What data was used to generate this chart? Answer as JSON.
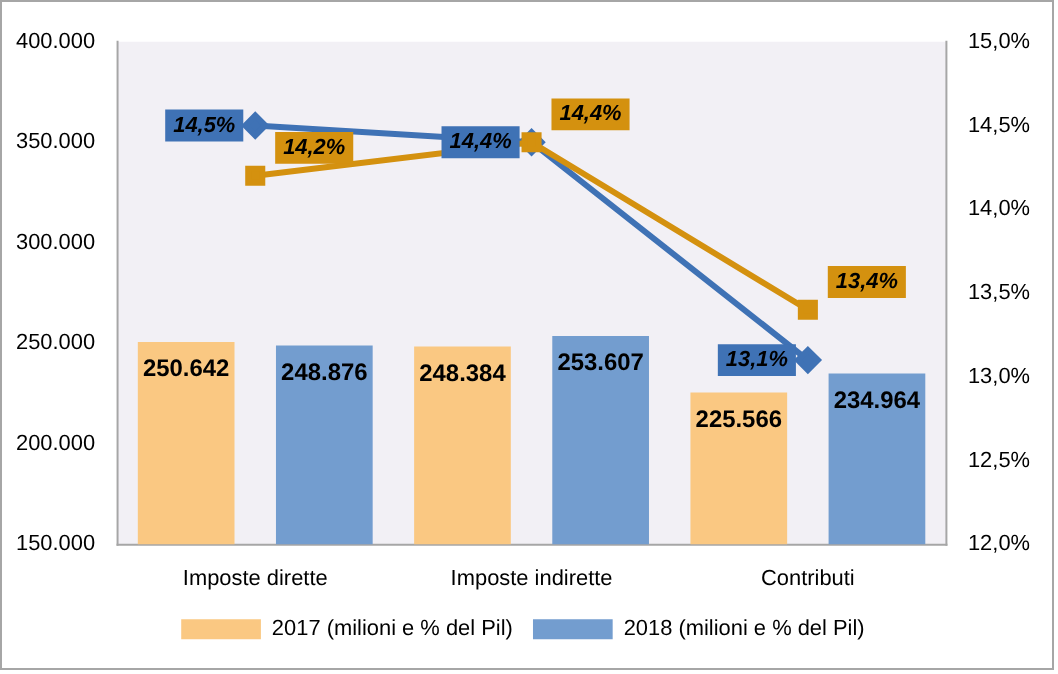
{
  "chart_data": {
    "type": "bar",
    "categories": [
      "Imposte dirette",
      "Imposte indirette",
      "Contributi"
    ],
    "series": [
      {
        "name": "2017 (milioni e % del Pil)",
        "color": "#fac882",
        "values": [
          250642,
          248384,
          225566
        ],
        "value_labels": [
          "250.642",
          "248.384",
          "225.566"
        ]
      },
      {
        "name": "2018 (milioni e % del Pil)",
        "color": "#739dcf",
        "values": [
          248876,
          253607,
          234964
        ],
        "value_labels": [
          "248.876",
          "253.607",
          "234.964"
        ]
      },
      {
        "type": "line",
        "axis": "y2",
        "color": "#d4910f",
        "marker": "square",
        "values": [
          14.2,
          14.4,
          13.4
        ],
        "value_labels": [
          "14,2%",
          "14,4%",
          "13,4%"
        ]
      },
      {
        "type": "line",
        "axis": "y2",
        "color": "#3f72b5",
        "marker": "diamond",
        "values": [
          14.5,
          14.4,
          13.1
        ],
        "value_labels": [
          "14,5%",
          "14,4%",
          "13,1%"
        ]
      }
    ],
    "ylim": [
      150000,
      400000
    ],
    "yticks": [
      {
        "value": 150000,
        "label": "150.000"
      },
      {
        "value": 200000,
        "label": "200.000"
      },
      {
        "value": 250000,
        "label": "250.000"
      },
      {
        "value": 300000,
        "label": "300.000"
      },
      {
        "value": 350000,
        "label": "350.000"
      },
      {
        "value": 400000,
        "label": "400.000"
      }
    ],
    "y2lim": [
      12,
      15
    ],
    "y2ticks": [
      {
        "value": 12,
        "label": "12,0%"
      },
      {
        "value": 12.5,
        "label": "12,5%"
      },
      {
        "value": 13,
        "label": "13,0%"
      },
      {
        "value": 13.5,
        "label": "13,5%"
      },
      {
        "value": 14,
        "label": "14,0%"
      },
      {
        "value": 14.5,
        "label": "14,5%"
      },
      {
        "value": 15,
        "label": "15,0%"
      }
    ],
    "grid": false,
    "legend": "bottom"
  }
}
